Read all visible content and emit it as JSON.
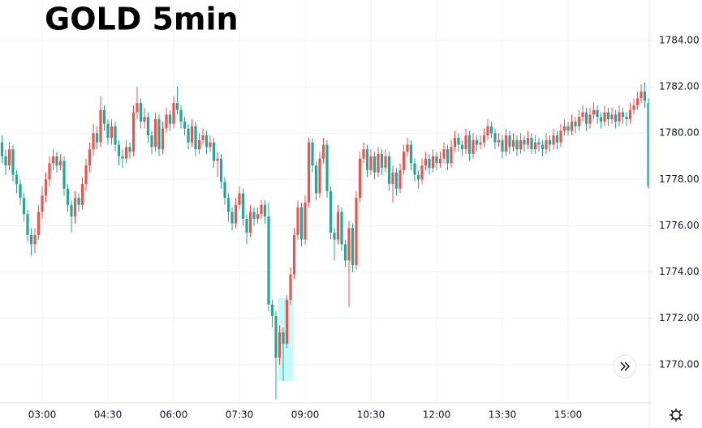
{
  "chart_data": {
    "type": "candlestick",
    "title": "GOLD 5min",
    "up_color": "#ef5350",
    "down_color": "#26a69a",
    "grid": true,
    "ylim": [
      1768.35,
      1785.75
    ],
    "yticks": [
      {
        "value": 1770,
        "label": "1770.00"
      },
      {
        "value": 1772,
        "label": "1772.00"
      },
      {
        "value": 1774,
        "label": "1774.00"
      },
      {
        "value": 1776,
        "label": "1776.00"
      },
      {
        "value": 1778,
        "label": "1778.00"
      },
      {
        "value": 1780,
        "label": "1780.00"
      },
      {
        "value": 1782,
        "label": "1782.00"
      },
      {
        "value": 1784,
        "label": "1784.00"
      }
    ],
    "xticks": [
      "03:00",
      "04:30",
      "06:00",
      "07:30",
      "09:00",
      "10:30",
      "12:00",
      "13:30",
      "15:00"
    ],
    "x": [
      "02:05",
      "02:10",
      "02:15",
      "02:20",
      "02:25",
      "02:30",
      "02:35",
      "02:40",
      "02:45",
      "02:50",
      "02:55",
      "03:00",
      "03:05",
      "03:10",
      "03:15",
      "03:20",
      "03:25",
      "03:30",
      "03:35",
      "03:40",
      "03:45",
      "03:50",
      "03:55",
      "04:00",
      "04:05",
      "04:10",
      "04:15",
      "04:20",
      "04:25",
      "04:30",
      "04:35",
      "04:40",
      "04:45",
      "04:50",
      "04:55",
      "05:00",
      "05:05",
      "05:10",
      "05:15",
      "05:20",
      "05:25",
      "05:30",
      "05:35",
      "05:40",
      "05:45",
      "05:50",
      "05:55",
      "06:00",
      "06:05",
      "06:10",
      "06:15",
      "06:20",
      "06:25",
      "06:30",
      "06:35",
      "06:40",
      "06:45",
      "06:50",
      "06:55",
      "07:00",
      "07:05",
      "07:10",
      "07:15",
      "07:20",
      "07:25",
      "07:30",
      "07:35",
      "07:40",
      "07:45",
      "07:50",
      "07:55",
      "08:00",
      "08:05",
      "08:10",
      "08:15",
      "08:20",
      "08:25",
      "08:30",
      "08:35",
      "08:40",
      "08:45",
      "08:50",
      "08:55",
      "09:00",
      "09:05",
      "09:10",
      "09:15",
      "09:20",
      "09:25",
      "09:30",
      "09:35",
      "09:40",
      "09:45",
      "09:50",
      "09:55",
      "10:00",
      "10:05",
      "10:10",
      "10:15",
      "10:20",
      "10:25",
      "10:30",
      "10:35",
      "10:40",
      "10:45",
      "10:50",
      "10:55",
      "11:00",
      "11:05",
      "11:10",
      "11:15",
      "11:20",
      "11:25",
      "11:30",
      "11:35",
      "11:40",
      "11:45",
      "11:50",
      "11:55",
      "12:00",
      "12:05",
      "12:10",
      "12:15",
      "12:20",
      "12:25",
      "12:30",
      "12:35",
      "12:40",
      "12:45",
      "12:50",
      "12:55",
      "13:00",
      "13:05",
      "13:10",
      "13:15",
      "13:20",
      "13:25",
      "13:30",
      "13:35",
      "13:40",
      "13:45",
      "13:50",
      "13:55",
      "14:00",
      "14:05",
      "14:10",
      "14:15",
      "14:20",
      "14:25",
      "14:30",
      "14:35",
      "14:40",
      "14:45",
      "14:50",
      "14:55",
      "15:00",
      "15:05",
      "15:10",
      "15:15",
      "15:20",
      "15:25",
      "15:30",
      "15:35",
      "15:40",
      "15:45",
      "15:50",
      "15:55",
      "16:00",
      "16:05",
      "16:10",
      "16:15",
      "16:20",
      "16:25",
      "16:30",
      "16:35",
      "16:40",
      "16:45",
      "16:50"
    ],
    "ohlc": [
      [
        1779.6,
        1779.9,
        1778.7,
        1779.0
      ],
      [
        1779.0,
        1779.3,
        1778.2,
        1778.6
      ],
      [
        1778.6,
        1779.6,
        1778.4,
        1779.3
      ],
      [
        1779.3,
        1779.5,
        1777.9,
        1778.2
      ],
      [
        1778.2,
        1778.4,
        1777.4,
        1777.8
      ],
      [
        1777.8,
        1778.0,
        1776.9,
        1777.2
      ],
      [
        1777.2,
        1777.4,
        1776.2,
        1776.5
      ],
      [
        1776.5,
        1776.7,
        1775.3,
        1775.6
      ],
      [
        1775.6,
        1775.9,
        1774.7,
        1775.2
      ],
      [
        1775.2,
        1775.9,
        1774.8,
        1775.6
      ],
      [
        1775.6,
        1776.9,
        1775.4,
        1776.6
      ],
      [
        1776.6,
        1777.7,
        1776.3,
        1777.3
      ],
      [
        1777.3,
        1778.3,
        1777.0,
        1778.0
      ],
      [
        1778.0,
        1779.0,
        1777.7,
        1778.7
      ],
      [
        1778.7,
        1779.3,
        1778.4,
        1779.0
      ],
      [
        1779.0,
        1779.2,
        1778.3,
        1778.6
      ],
      [
        1778.6,
        1779.1,
        1778.4,
        1778.8
      ],
      [
        1778.8,
        1779.0,
        1777.3,
        1777.6
      ],
      [
        1777.6,
        1777.8,
        1776.6,
        1776.9
      ],
      [
        1776.9,
        1777.1,
        1775.7,
        1776.4
      ],
      [
        1776.4,
        1777.5,
        1776.1,
        1777.2
      ],
      [
        1777.2,
        1777.4,
        1776.6,
        1776.9
      ],
      [
        1776.9,
        1778.1,
        1776.7,
        1777.8
      ],
      [
        1777.8,
        1778.9,
        1777.5,
        1778.6
      ],
      [
        1778.6,
        1779.6,
        1778.3,
        1779.3
      ],
      [
        1779.3,
        1780.4,
        1779.0,
        1780.0
      ],
      [
        1780.0,
        1780.3,
        1779.3,
        1779.6
      ],
      [
        1779.6,
        1781.6,
        1779.4,
        1781.0
      ],
      [
        1781.0,
        1781.2,
        1780.1,
        1780.4
      ],
      [
        1780.4,
        1780.6,
        1779.5,
        1779.8
      ],
      [
        1779.8,
        1780.6,
        1779.5,
        1780.3
      ],
      [
        1780.3,
        1780.5,
        1779.2,
        1779.5
      ],
      [
        1779.5,
        1779.7,
        1778.6,
        1779.0
      ],
      [
        1779.0,
        1779.3,
        1778.5,
        1778.9
      ],
      [
        1778.9,
        1779.7,
        1778.7,
        1779.4
      ],
      [
        1779.4,
        1779.6,
        1778.9,
        1779.2
      ],
      [
        1779.2,
        1781.2,
        1779.0,
        1780.9
      ],
      [
        1780.9,
        1782.0,
        1780.6,
        1781.3
      ],
      [
        1781.3,
        1781.5,
        1780.2,
        1780.5
      ],
      [
        1780.5,
        1781.1,
        1780.2,
        1780.7
      ],
      [
        1780.7,
        1780.9,
        1779.6,
        1779.9
      ],
      [
        1779.9,
        1780.1,
        1779.1,
        1779.4
      ],
      [
        1779.4,
        1780.9,
        1779.2,
        1780.6
      ],
      [
        1780.6,
        1780.8,
        1779.0,
        1779.3
      ],
      [
        1779.3,
        1780.5,
        1779.1,
        1780.2
      ],
      [
        1780.2,
        1781.1,
        1780.0,
        1780.8
      ],
      [
        1780.8,
        1781.0,
        1780.1,
        1780.4
      ],
      [
        1780.4,
        1781.6,
        1780.2,
        1781.3
      ],
      [
        1781.3,
        1782.0,
        1780.8,
        1781.0
      ],
      [
        1781.0,
        1781.2,
        1780.2,
        1780.5
      ],
      [
        1780.5,
        1780.7,
        1779.9,
        1780.2
      ],
      [
        1780.2,
        1780.4,
        1779.3,
        1779.6
      ],
      [
        1779.6,
        1780.6,
        1779.4,
        1780.3
      ],
      [
        1780.3,
        1780.5,
        1779.0,
        1779.3
      ],
      [
        1779.3,
        1780.0,
        1779.1,
        1779.7
      ],
      [
        1779.7,
        1780.2,
        1779.5,
        1779.9
      ],
      [
        1779.9,
        1780.1,
        1779.1,
        1779.4
      ],
      [
        1779.4,
        1779.9,
        1779.2,
        1779.6
      ],
      [
        1779.6,
        1779.8,
        1778.5,
        1778.8
      ],
      [
        1778.8,
        1779.2,
        1778.1,
        1778.9
      ],
      [
        1778.9,
        1779.1,
        1777.6,
        1777.9
      ],
      [
        1777.9,
        1778.1,
        1776.9,
        1777.2
      ],
      [
        1777.2,
        1777.4,
        1776.2,
        1776.6
      ],
      [
        1776.6,
        1776.8,
        1775.8,
        1776.1
      ],
      [
        1776.1,
        1777.2,
        1775.9,
        1776.9
      ],
      [
        1776.9,
        1777.7,
        1776.7,
        1777.4
      ],
      [
        1777.4,
        1777.6,
        1776.0,
        1776.3
      ],
      [
        1776.3,
        1776.5,
        1775.2,
        1775.7
      ],
      [
        1775.7,
        1776.9,
        1775.5,
        1776.6
      ],
      [
        1776.6,
        1776.8,
        1776.0,
        1776.3
      ],
      [
        1776.3,
        1776.8,
        1776.1,
        1776.5
      ],
      [
        1776.5,
        1777.1,
        1776.3,
        1776.9
      ],
      [
        1776.9,
        1777.1,
        1776.1,
        1776.4
      ],
      [
        1776.4,
        1777.0,
        1772.3,
        1772.6
      ],
      [
        1772.6,
        1772.8,
        1771.6,
        1772.1
      ],
      [
        1772.1,
        1772.3,
        1768.5,
        1770.3
      ],
      [
        1770.3,
        1771.7,
        1770.0,
        1771.4
      ],
      [
        1771.4,
        1771.6,
        1769.3,
        1770.9
      ],
      [
        1770.9,
        1773.0,
        1770.7,
        1772.8
      ],
      [
        1772.8,
        1774.2,
        1772.6,
        1773.9
      ],
      [
        1773.9,
        1775.9,
        1773.7,
        1775.6
      ],
      [
        1775.6,
        1777.1,
        1775.4,
        1776.8
      ],
      [
        1776.8,
        1777.0,
        1775.1,
        1775.4
      ],
      [
        1775.4,
        1777.3,
        1775.2,
        1777.0
      ],
      [
        1777.0,
        1779.8,
        1776.8,
        1779.6
      ],
      [
        1779.6,
        1779.8,
        1778.3,
        1778.6
      ],
      [
        1778.6,
        1778.8,
        1777.1,
        1777.4
      ],
      [
        1777.4,
        1779.2,
        1777.2,
        1778.9
      ],
      [
        1778.9,
        1779.8,
        1778.7,
        1779.5
      ],
      [
        1779.5,
        1779.7,
        1777.2,
        1777.5
      ],
      [
        1777.5,
        1777.7,
        1775.4,
        1775.7
      ],
      [
        1775.7,
        1775.9,
        1774.5,
        1775.4
      ],
      [
        1775.4,
        1776.9,
        1775.2,
        1776.6
      ],
      [
        1776.6,
        1776.8,
        1774.9,
        1775.2
      ],
      [
        1775.2,
        1775.4,
        1774.2,
        1774.5
      ],
      [
        1774.5,
        1776.2,
        1772.5,
        1775.9
      ],
      [
        1775.9,
        1776.1,
        1774.0,
        1774.3
      ],
      [
        1774.3,
        1777.5,
        1774.1,
        1777.2
      ],
      [
        1777.2,
        1779.2,
        1777.0,
        1778.9
      ],
      [
        1778.9,
        1779.6,
        1778.7,
        1779.3
      ],
      [
        1779.3,
        1779.5,
        1778.1,
        1778.4
      ],
      [
        1778.4,
        1779.3,
        1778.2,
        1779.0
      ],
      [
        1779.0,
        1779.2,
        1778.0,
        1778.3
      ],
      [
        1778.3,
        1779.4,
        1778.1,
        1779.1
      ],
      [
        1779.1,
        1779.3,
        1778.2,
        1778.5
      ],
      [
        1778.5,
        1779.3,
        1778.3,
        1779.0
      ],
      [
        1779.0,
        1779.2,
        1777.5,
        1777.8
      ],
      [
        1777.8,
        1778.6,
        1777.0,
        1778.3
      ],
      [
        1778.3,
        1778.5,
        1777.3,
        1777.6
      ],
      [
        1777.6,
        1778.7,
        1777.4,
        1778.4
      ],
      [
        1778.4,
        1779.5,
        1778.2,
        1779.2
      ],
      [
        1779.2,
        1779.8,
        1779.0,
        1779.5
      ],
      [
        1779.5,
        1779.7,
        1778.4,
        1778.7
      ],
      [
        1778.7,
        1778.9,
        1777.9,
        1778.2
      ],
      [
        1778.2,
        1778.4,
        1777.6,
        1778.0
      ],
      [
        1778.0,
        1778.9,
        1777.8,
        1778.6
      ],
      [
        1778.6,
        1779.2,
        1778.4,
        1778.9
      ],
      [
        1778.9,
        1779.1,
        1778.2,
        1778.5
      ],
      [
        1778.5,
        1779.3,
        1778.3,
        1779.0
      ],
      [
        1779.0,
        1779.2,
        1778.4,
        1778.7
      ],
      [
        1778.7,
        1779.2,
        1778.5,
        1778.9
      ],
      [
        1778.9,
        1779.6,
        1778.7,
        1779.3
      ],
      [
        1779.3,
        1779.5,
        1778.4,
        1778.7
      ],
      [
        1778.7,
        1779.7,
        1778.5,
        1779.4
      ],
      [
        1779.4,
        1780.1,
        1779.2,
        1779.8
      ],
      [
        1779.8,
        1780.0,
        1779.2,
        1779.5
      ],
      [
        1779.5,
        1779.7,
        1779.0,
        1779.3
      ],
      [
        1779.3,
        1780.2,
        1779.1,
        1779.9
      ],
      [
        1779.9,
        1780.1,
        1778.8,
        1779.1
      ],
      [
        1779.1,
        1780.0,
        1778.9,
        1779.7
      ],
      [
        1779.7,
        1779.9,
        1779.2,
        1779.5
      ],
      [
        1779.5,
        1779.9,
        1779.3,
        1779.6
      ],
      [
        1779.6,
        1780.2,
        1779.4,
        1779.9
      ],
      [
        1779.9,
        1780.6,
        1779.7,
        1780.3
      ],
      [
        1780.3,
        1780.5,
        1779.8,
        1780.0
      ],
      [
        1780.0,
        1780.2,
        1779.3,
        1779.6
      ],
      [
        1779.6,
        1780.0,
        1779.4,
        1779.7
      ],
      [
        1779.7,
        1779.9,
        1778.9,
        1779.2
      ],
      [
        1779.2,
        1780.2,
        1779.0,
        1779.9
      ],
      [
        1779.9,
        1780.1,
        1779.1,
        1779.4
      ],
      [
        1779.4,
        1780.0,
        1779.2,
        1779.7
      ],
      [
        1779.7,
        1779.9,
        1779.0,
        1779.3
      ],
      [
        1779.3,
        1780.0,
        1779.1,
        1779.7
      ],
      [
        1779.7,
        1779.9,
        1779.2,
        1779.5
      ],
      [
        1779.5,
        1780.1,
        1779.3,
        1779.8
      ],
      [
        1779.8,
        1780.0,
        1779.1,
        1779.3
      ],
      [
        1779.3,
        1779.9,
        1779.1,
        1779.6
      ],
      [
        1779.6,
        1779.8,
        1779.2,
        1779.5
      ],
      [
        1779.5,
        1779.7,
        1779.0,
        1779.3
      ],
      [
        1779.3,
        1780.0,
        1779.1,
        1779.7
      ],
      [
        1779.7,
        1779.9,
        1779.2,
        1779.5
      ],
      [
        1779.5,
        1780.2,
        1779.3,
        1779.9
      ],
      [
        1779.9,
        1780.1,
        1779.3,
        1779.6
      ],
      [
        1779.6,
        1780.4,
        1779.4,
        1780.1
      ],
      [
        1780.1,
        1780.6,
        1779.9,
        1780.3
      ],
      [
        1780.3,
        1780.5,
        1779.9,
        1780.1
      ],
      [
        1780.1,
        1780.8,
        1779.9,
        1780.5
      ],
      [
        1780.5,
        1780.7,
        1780.0,
        1780.3
      ],
      [
        1780.3,
        1781.0,
        1780.1,
        1780.7
      ],
      [
        1780.7,
        1781.2,
        1780.5,
        1780.9
      ],
      [
        1780.9,
        1781.1,
        1780.1,
        1780.4
      ],
      [
        1780.4,
        1781.1,
        1780.2,
        1780.8
      ],
      [
        1780.8,
        1781.3,
        1780.6,
        1781.0
      ],
      [
        1781.0,
        1781.2,
        1780.4,
        1780.7
      ],
      [
        1780.7,
        1780.9,
        1780.2,
        1780.5
      ],
      [
        1780.5,
        1781.2,
        1780.3,
        1780.9
      ],
      [
        1780.9,
        1781.1,
        1780.3,
        1780.6
      ],
      [
        1780.6,
        1781.1,
        1780.4,
        1780.8
      ],
      [
        1780.8,
        1781.0,
        1780.2,
        1780.5
      ],
      [
        1780.5,
        1781.2,
        1780.3,
        1780.9
      ],
      [
        1780.9,
        1781.1,
        1780.4,
        1780.7
      ],
      [
        1780.7,
        1780.9,
        1780.3,
        1780.6
      ],
      [
        1780.6,
        1781.3,
        1780.4,
        1781.0
      ],
      [
        1781.0,
        1781.5,
        1780.8,
        1781.2
      ],
      [
        1781.2,
        1781.8,
        1781.0,
        1781.5
      ],
      [
        1781.5,
        1782.1,
        1781.3,
        1781.8
      ],
      [
        1781.8,
        1782.2,
        1781.1,
        1781.4
      ],
      [
        1781.3,
        1781.5,
        1777.6,
        1777.7
      ]
    ]
  }
}
